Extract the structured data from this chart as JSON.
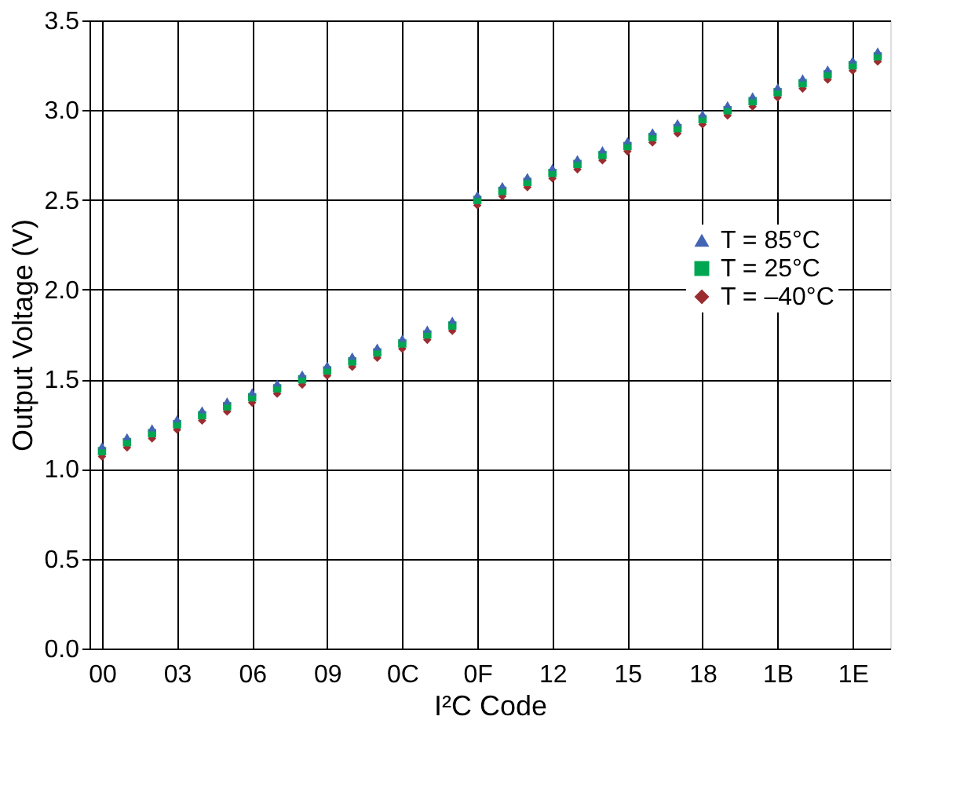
{
  "chart_data": {
    "type": "scatter",
    "xlabel": "I²C Code",
    "ylabel": "Output Voltage (V)",
    "categories": [
      "00",
      null,
      null,
      "03",
      null,
      null,
      "06",
      null,
      null,
      "09",
      null,
      null,
      "0C",
      null,
      null,
      "0F",
      null,
      null,
      "12",
      null,
      null,
      "15",
      null,
      null,
      "18",
      null,
      null,
      "1B",
      null,
      null,
      "1E",
      null
    ],
    "series": [
      {
        "name": "T = 85°C",
        "color": "#4364b4",
        "marker": "triangle",
        "values": [
          1.13,
          1.18,
          1.23,
          1.28,
          1.33,
          1.38,
          1.43,
          1.48,
          1.53,
          1.58,
          1.63,
          1.68,
          1.73,
          1.78,
          1.83,
          2.53,
          2.58,
          2.63,
          2.68,
          2.73,
          2.78,
          2.83,
          2.88,
          2.93,
          2.98,
          3.03,
          3.08,
          3.13,
          3.18,
          3.23,
          3.28,
          3.33
        ]
      },
      {
        "name": "T = 25°C",
        "color": "#00a651",
        "marker": "square",
        "values": [
          1.1,
          1.15,
          1.2,
          1.25,
          1.3,
          1.35,
          1.4,
          1.45,
          1.5,
          1.55,
          1.6,
          1.65,
          1.7,
          1.75,
          1.8,
          2.5,
          2.55,
          2.6,
          2.65,
          2.7,
          2.75,
          2.8,
          2.85,
          2.9,
          2.95,
          3.0,
          3.05,
          3.1,
          3.15,
          3.2,
          3.25,
          3.3
        ]
      },
      {
        "name": "T = –40°C",
        "color": "#9b2d30",
        "marker": "diamond",
        "values": [
          1.07,
          1.12,
          1.17,
          1.22,
          1.27,
          1.32,
          1.37,
          1.42,
          1.47,
          1.52,
          1.57,
          1.62,
          1.67,
          1.72,
          1.77,
          2.47,
          2.52,
          2.57,
          2.62,
          2.67,
          2.72,
          2.77,
          2.82,
          2.87,
          2.92,
          2.97,
          3.02,
          3.07,
          3.12,
          3.17,
          3.22,
          3.27
        ]
      }
    ],
    "ylim": [
      0,
      3.5
    ],
    "yticks": [
      {
        "value": 0,
        "label": "0.0"
      },
      {
        "value": 0.5,
        "label": "0.5"
      },
      {
        "value": 1,
        "label": "1.0"
      },
      {
        "value": 1.5,
        "label": "1.5"
      },
      {
        "value": 2,
        "label": "2.0"
      },
      {
        "value": 2.5,
        "label": "2.5"
      },
      {
        "value": 3,
        "label": "3.0"
      },
      {
        "value": 3.5,
        "label": "3.5"
      }
    ],
    "grid": true,
    "legend": "right"
  }
}
